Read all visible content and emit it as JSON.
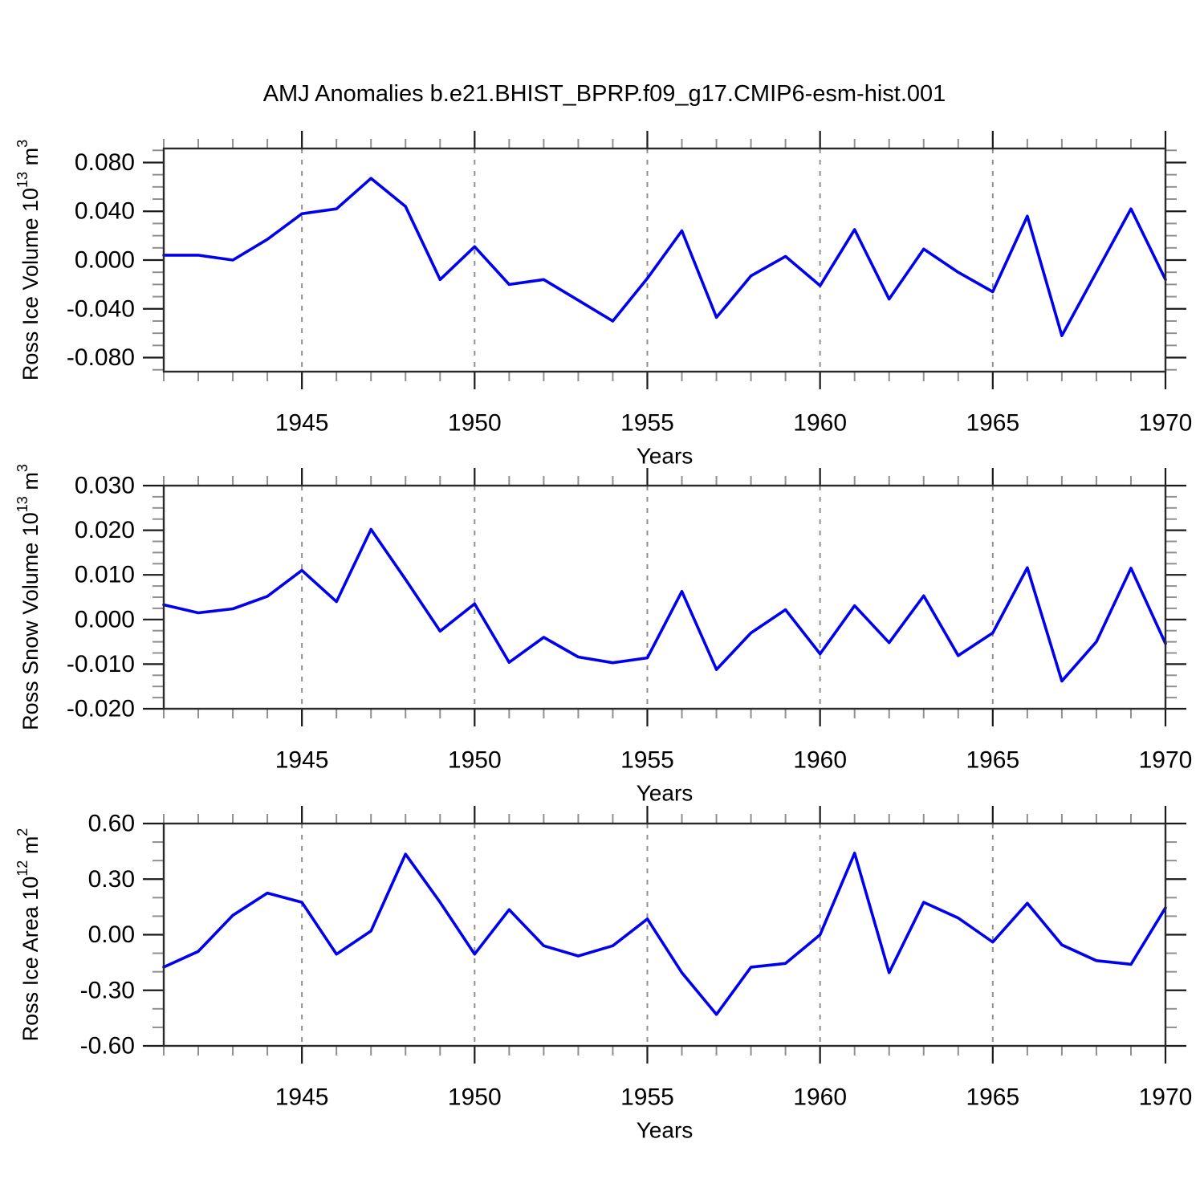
{
  "title": "AMJ Anomalies b.e21.BHIST_BPRP.f09_g17.CMIP6-esm-hist.001",
  "colors": {
    "line": "#0000ee",
    "frame": "#2a2a2a",
    "grid": "#909090",
    "tick_major": "#1a1a1a",
    "tick_minor": "#8f8f8f",
    "text": "#000000"
  },
  "x_axis": {
    "label": "Years",
    "years_start": 1941,
    "years_end": 1970,
    "major_ticks": [
      1945,
      1950,
      1955,
      1960,
      1965,
      1970
    ],
    "minor_step": 1,
    "gridlines": [
      1945,
      1950,
      1955,
      1960,
      1965
    ]
  },
  "chart_data": [
    {
      "type": "line",
      "name": "ross-ice-volume",
      "ylabel_parts": [
        {
          "text": "Ross Ice Volume 10"
        },
        {
          "sup": "13"
        },
        {
          "text": " m"
        },
        {
          "sup": "3"
        }
      ],
      "ylim": [
        -0.0915,
        0.0915
      ],
      "ytick_values": [
        0.08,
        0.04,
        0.0,
        -0.04,
        -0.08
      ],
      "ytick_labels": [
        "0.080",
        "0.040",
        "0.000",
        "-0.040",
        "-0.080"
      ],
      "yminor_step": 0.01,
      "x": [
        1941,
        1942,
        1943,
        1944,
        1945,
        1946,
        1947,
        1948,
        1949,
        1950,
        1951,
        1952,
        1953,
        1954,
        1955,
        1956,
        1957,
        1958,
        1959,
        1960,
        1961,
        1962,
        1963,
        1964,
        1965,
        1966,
        1967,
        1968,
        1969,
        1970
      ],
      "values": [
        0.004,
        0.004,
        0.0,
        0.017,
        0.038,
        0.042,
        0.067,
        0.044,
        -0.016,
        0.011,
        -0.02,
        -0.016,
        -0.033,
        -0.05,
        -0.015,
        0.024,
        -0.047,
        -0.013,
        0.003,
        -0.021,
        0.025,
        -0.032,
        0.009,
        -0.01,
        -0.026,
        0.036,
        -0.062,
        -0.01,
        0.042,
        -0.016
      ]
    },
    {
      "type": "line",
      "name": "ross-snow-volume",
      "ylabel_parts": [
        {
          "text": "Ross Snow Volume 10"
        },
        {
          "sup": "13"
        },
        {
          "text": " m"
        },
        {
          "sup": "3"
        }
      ],
      "ylim": [
        -0.02,
        0.03
      ],
      "ytick_values": [
        0.03,
        0.02,
        0.01,
        0.0,
        -0.01,
        -0.02
      ],
      "ytick_labels": [
        "0.030",
        "0.020",
        "0.010",
        "0.000",
        "-0.010",
        "-0.020"
      ],
      "yminor_step": 0.0025,
      "x": [
        1941,
        1942,
        1943,
        1944,
        1945,
        1946,
        1947,
        1948,
        1949,
        1950,
        1951,
        1952,
        1953,
        1954,
        1955,
        1956,
        1957,
        1958,
        1959,
        1960,
        1961,
        1962,
        1963,
        1964,
        1965,
        1966,
        1967,
        1968,
        1969,
        1970
      ],
      "values": [
        0.0033,
        0.0015,
        0.0024,
        0.0052,
        0.011,
        0.004,
        0.0202,
        0.009,
        -0.0026,
        0.0035,
        -0.0096,
        -0.004,
        -0.0084,
        -0.0097,
        -0.0086,
        0.0063,
        -0.0112,
        -0.003,
        0.0022,
        -0.0077,
        0.0031,
        -0.0052,
        0.0053,
        -0.0081,
        -0.003,
        0.0116,
        -0.0138,
        -0.005,
        0.0115,
        -0.0054
      ]
    },
    {
      "type": "line",
      "name": "ross-ice-area",
      "ylabel_parts": [
        {
          "text": "Ross Ice Area 10"
        },
        {
          "sup": "12"
        },
        {
          "text": " m"
        },
        {
          "sup": "2"
        }
      ],
      "ylim": [
        -0.6,
        0.6
      ],
      "ytick_values": [
        0.6,
        0.3,
        0.0,
        -0.3,
        -0.6
      ],
      "ytick_labels": [
        "0.60",
        "0.30",
        "0.00",
        "-0.30",
        "-0.60"
      ],
      "yminor_step": 0.1,
      "x": [
        1941,
        1942,
        1943,
        1944,
        1945,
        1946,
        1947,
        1948,
        1949,
        1950,
        1951,
        1952,
        1953,
        1954,
        1955,
        1956,
        1957,
        1958,
        1959,
        1960,
        1961,
        1962,
        1963,
        1964,
        1965,
        1966,
        1967,
        1968,
        1969,
        1970
      ],
      "values": [
        -0.175,
        -0.09,
        0.105,
        0.225,
        0.175,
        -0.105,
        0.02,
        0.435,
        0.175,
        -0.105,
        0.135,
        -0.06,
        -0.115,
        -0.06,
        0.085,
        -0.205,
        -0.43,
        -0.175,
        -0.155,
        0.0,
        0.44,
        -0.205,
        0.175,
        0.09,
        -0.04,
        0.17,
        -0.055,
        -0.14,
        -0.16,
        0.145
      ]
    }
  ]
}
